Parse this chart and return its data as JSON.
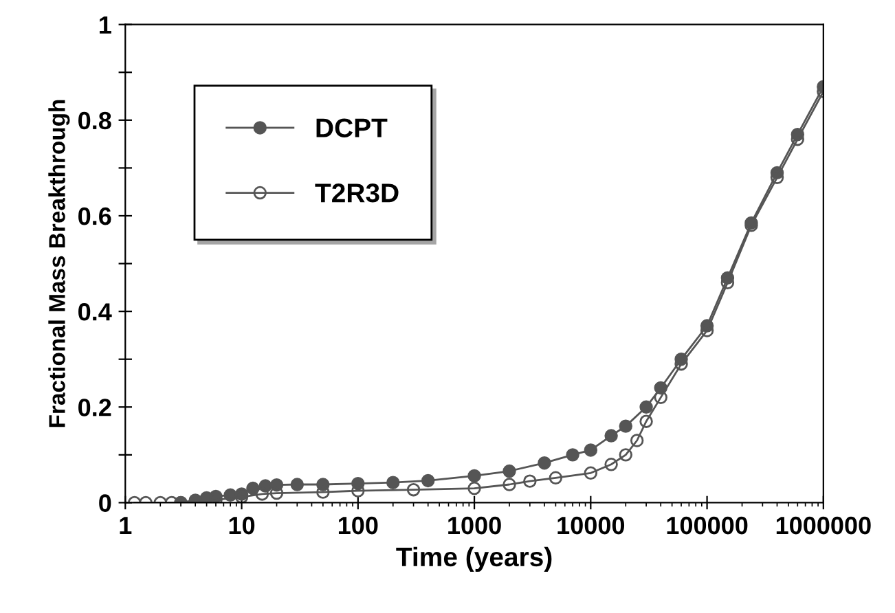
{
  "chart_data": {
    "type": "line",
    "xlabel": "Time (years)",
    "ylabel": "Fractional Mass Breakthrough",
    "log": "x",
    "xlim": [
      1,
      1000000
    ],
    "xticks": [
      1,
      10,
      100,
      1000,
      10000,
      100000,
      1000000
    ],
    "ylim": [
      0,
      1
    ],
    "yticks": [
      0,
      {
        "value": 0.1,
        "label": null
      },
      0.2,
      {
        "value": 0.3,
        "label": null
      },
      0.4,
      {
        "value": 0.5,
        "label": null
      },
      0.6,
      {
        "value": 0.7,
        "label": null
      },
      0.8,
      {
        "value": 0.9,
        "label": null
      },
      1
    ],
    "grid": false,
    "legend": "top left",
    "marker": "circle",
    "line_style": "solid",
    "series": [
      {
        "name": "DCPT",
        "color": "#555555",
        "x": [
          3,
          4,
          5,
          6,
          8,
          10,
          12.5,
          16,
          20,
          30,
          50,
          100,
          200,
          400,
          1000,
          2000,
          4000,
          7000,
          10000,
          15000,
          20000,
          30000,
          40000,
          60000,
          100000,
          150000,
          240000,
          400000,
          600000,
          1000000
        ],
        "values": [
          0,
          0.005,
          0.01,
          0.013,
          0.016,
          0.018,
          0.03,
          0.035,
          0.037,
          0.038,
          0.038,
          0.04,
          0.042,
          0.046,
          0.056,
          0.066,
          0.083,
          0.1,
          0.11,
          0.14,
          0.16,
          0.2,
          0.24,
          0.3,
          0.37,
          0.47,
          0.585,
          0.69,
          0.77,
          0.87
        ]
      },
      {
        "name": "T2R3D",
        "color": "#555555",
        "x": [
          1.2,
          1.5,
          2,
          2.5,
          3,
          4,
          6,
          10,
          15,
          20,
          50,
          100,
          300,
          1000,
          2000,
          3000,
          5000,
          10000,
          15000,
          20000,
          25000,
          30000,
          40000,
          60000,
          100000,
          150000,
          240000,
          400000,
          600000,
          1000000
        ],
        "values": [
          0,
          0,
          0,
          0,
          0,
          0.002,
          0.006,
          0.012,
          0.018,
          0.02,
          0.022,
          0.025,
          0.027,
          0.03,
          0.038,
          0.045,
          0.052,
          0.062,
          0.08,
          0.1,
          0.13,
          0.17,
          0.22,
          0.29,
          0.36,
          0.46,
          0.58,
          0.68,
          0.76,
          0.86
        ]
      }
    ]
  }
}
